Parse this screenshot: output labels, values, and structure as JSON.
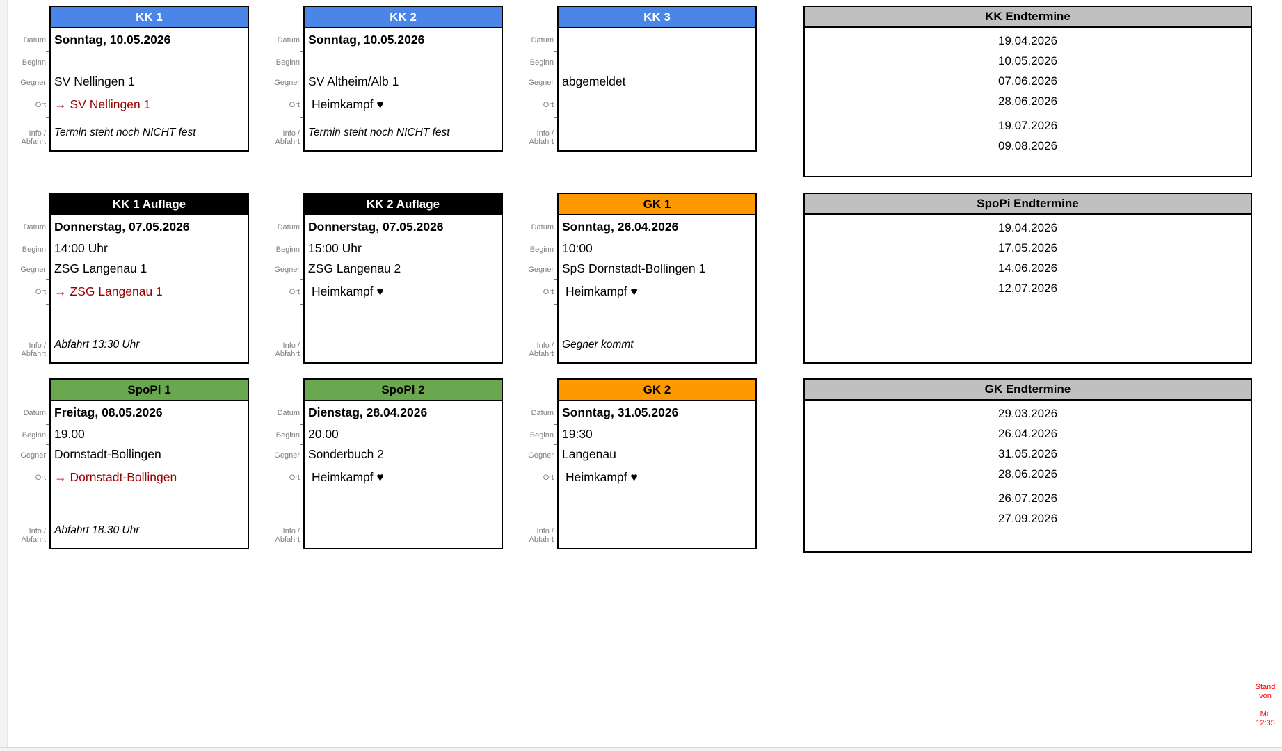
{
  "colors": {
    "kk": "#4a86e8",
    "kk_text": "#ffffff",
    "auflage": "#000000",
    "auflage_text": "#ffffff",
    "gk": "#ff9900",
    "gk_text": "#000000",
    "spopi": "#6aa84f",
    "spopi_text": "#000000",
    "list_header": "#c0c0c0",
    "away": "#990000",
    "note": "#ff0000"
  },
  "icons": {
    "away_arrow": "→",
    "home_heart": "♥"
  },
  "row_labels": [
    "Datum",
    "Beginn",
    "Gegner",
    "Ort",
    "Info / Abfahrt"
  ],
  "cards": [
    {
      "title": "KK 1",
      "theme": "kk",
      "row": 1,
      "col": 1,
      "datum": "Sonntag, 10.05.2026",
      "beginn": "",
      "gegner": "SV Nellingen 1",
      "ort": {
        "away": true,
        "text": "SV Nellingen 1"
      },
      "info": "Termin steht noch NICHT fest"
    },
    {
      "title": "KK 2",
      "theme": "kk",
      "row": 1,
      "col": 2,
      "datum": "Sonntag, 10.05.2026",
      "beginn": "",
      "gegner": "SV Altheim/Alb 1",
      "ort": {
        "away": false,
        "text": "Heimkampf ♥"
      },
      "info": "Termin steht noch NICHT fest"
    },
    {
      "title": "KK 3",
      "theme": "kk",
      "row": 1,
      "col": 3,
      "datum": "",
      "beginn": "",
      "gegner": "abgemeldet",
      "ort": {
        "away": false,
        "text": ""
      },
      "info": ""
    },
    {
      "title": "KK 1 Auflage",
      "theme": "auflage",
      "row": 2,
      "col": 1,
      "datum": "Donnerstag, 07.05.2026",
      "beginn": "14:00 Uhr",
      "gegner": "ZSG Langenau 1",
      "ort": {
        "away": true,
        "text": "ZSG Langenau 1"
      },
      "info": "Abfahrt 13:30 Uhr"
    },
    {
      "title": "KK 2 Auflage",
      "theme": "auflage",
      "row": 2,
      "col": 2,
      "datum": "Donnerstag, 07.05.2026",
      "beginn": "15:00 Uhr",
      "gegner": "ZSG Langenau 2",
      "ort": {
        "away": false,
        "text": "Heimkampf ♥"
      },
      "info": ""
    },
    {
      "title": "GK 1",
      "theme": "gk",
      "row": 2,
      "col": 3,
      "datum": "Sonntag, 26.04.2026",
      "beginn": "10:00",
      "gegner": "SpS Dornstadt-Bollingen 1",
      "ort": {
        "away": false,
        "text": "Heimkampf ♥"
      },
      "info": "Gegner kommt"
    },
    {
      "title": "SpoPi 1",
      "theme": "spopi",
      "row": 3,
      "col": 1,
      "datum": "Freitag, 08.05.2026",
      "beginn": "19.00",
      "gegner": "Dornstadt-Bollingen",
      "ort": {
        "away": true,
        "text": "Dornstadt-Bollingen"
      },
      "info": "Abfahrt 18.30 Uhr"
    },
    {
      "title": "SpoPi 2",
      "theme": "spopi",
      "row": 3,
      "col": 2,
      "datum": "Dienstag, 28.04.2026",
      "beginn": "20.00",
      "gegner": "Sonderbuch 2",
      "ort": {
        "away": false,
        "text": "Heimkampf ♥"
      },
      "info": ""
    },
    {
      "title": "GK 2",
      "theme": "gk",
      "row": 3,
      "col": 3,
      "datum": "Sonntag, 31.05.2026",
      "beginn": "19:30",
      "gegner": "Langenau",
      "ort": {
        "away": false,
        "text": "Heimkampf ♥"
      },
      "info": ""
    }
  ],
  "lists": [
    {
      "title": "KK Endtermine",
      "gap_after": 4,
      "dates": [
        "19.04.2026",
        "10.05.2026",
        "07.06.2026",
        "28.06.2026",
        "19.07.2026",
        "09.08.2026"
      ]
    },
    {
      "title": "SpoPi Endtermine",
      "gap_after": null,
      "dates": [
        "19.04.2026",
        "17.05.2026",
        "14.06.2026",
        "12.07.2026"
      ]
    },
    {
      "title": "GK Endtermine",
      "gap_after": 4,
      "dates": [
        "29.03.2026",
        "26.04.2026",
        "31.05.2026",
        "28.06.2026",
        "26.07.2026",
        "27.09.2026"
      ]
    }
  ],
  "footer": {
    "lines": [
      "Stand",
      "von",
      "",
      "Mi.",
      "12:35"
    ]
  }
}
